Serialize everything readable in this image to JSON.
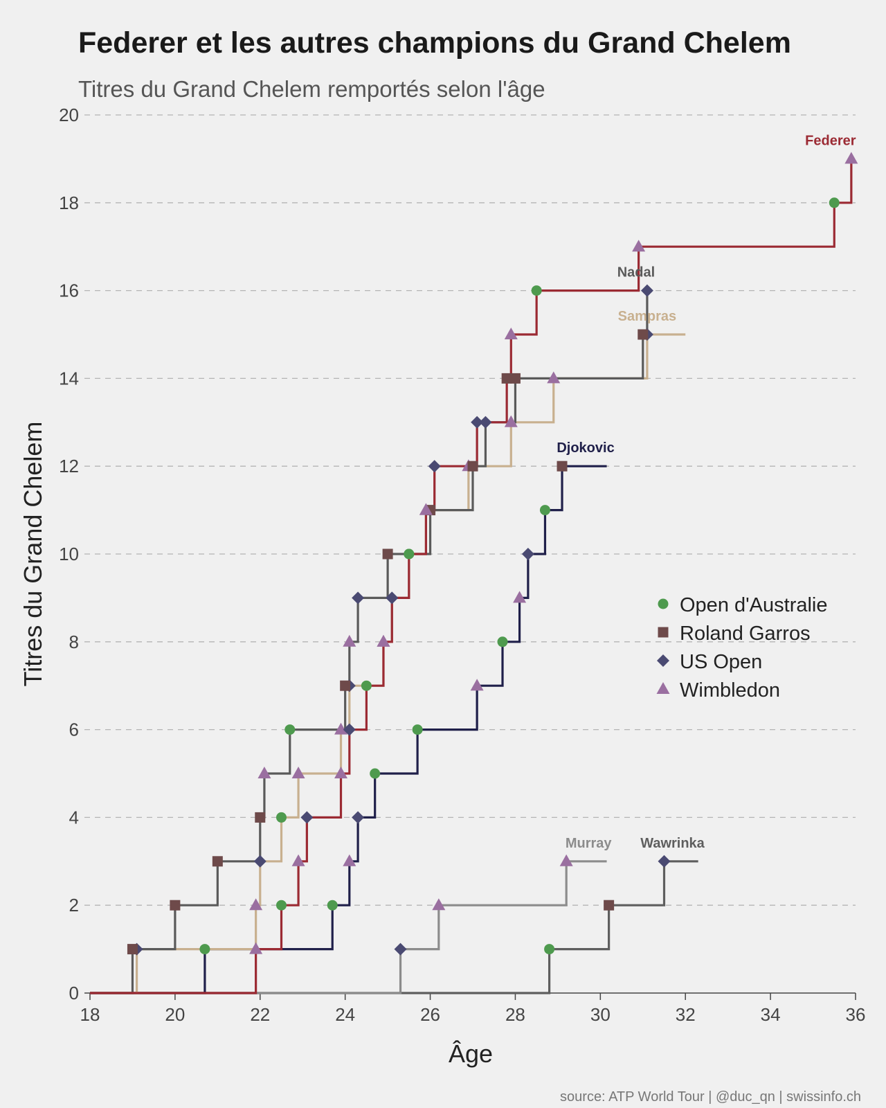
{
  "chart_data": {
    "type": "line",
    "title": "Federer et les autres champions du Grand Chelem",
    "subtitle": "Titres du Grand Chelem remportés selon l'âge",
    "xlabel": "Âge",
    "ylabel": "Titres du Grand Chelem",
    "source": "source: ATP World Tour | @duc_qn | swissinfo.ch",
    "xlim": [
      18,
      36
    ],
    "ylim": [
      0,
      20
    ],
    "x_ticks": [
      18,
      20,
      22,
      24,
      26,
      28,
      30,
      32,
      34,
      36
    ],
    "y_ticks": [
      0,
      2,
      4,
      6,
      8,
      10,
      12,
      14,
      16,
      18,
      20
    ],
    "grid": "horizontal dashed",
    "legend_position": "right",
    "legend": [
      {
        "key": "AO",
        "label": "Open d'Australie",
        "shape": "circle",
        "color": "#4e9a4e"
      },
      {
        "key": "RG",
        "label": "Roland Garros",
        "shape": "square",
        "color": "#6e4a4a"
      },
      {
        "key": "US",
        "label": "US Open",
        "shape": "diamond",
        "color": "#4a4a72"
      },
      {
        "key": "W",
        "label": "Wimbledon",
        "shape": "triangle",
        "color": "#9a6fa0"
      }
    ],
    "series": [
      {
        "name": "Federer",
        "color": "#9b2a33",
        "end_age": 35.95,
        "titles": [
          [
            21.9,
            "W"
          ],
          [
            22.5,
            "AO"
          ],
          [
            22.9,
            "W"
          ],
          [
            23.1,
            "US"
          ],
          [
            23.9,
            "W"
          ],
          [
            24.1,
            "US"
          ],
          [
            24.5,
            "AO"
          ],
          [
            24.9,
            "W"
          ],
          [
            25.1,
            "US"
          ],
          [
            25.5,
            "AO"
          ],
          [
            25.9,
            "W"
          ],
          [
            26.1,
            "US"
          ],
          [
            27.1,
            "US"
          ],
          [
            27.8,
            "RG"
          ],
          [
            27.9,
            "W"
          ],
          [
            28.5,
            "AO"
          ],
          [
            30.9,
            "W"
          ],
          [
            35.5,
            "AO"
          ],
          [
            35.9,
            "W"
          ]
        ]
      },
      {
        "name": "Nadal",
        "color": "#5a5a5a",
        "end_age": 31.05,
        "titles": [
          [
            19.0,
            "RG"
          ],
          [
            20.0,
            "RG"
          ],
          [
            21.0,
            "RG"
          ],
          [
            22.0,
            "RG"
          ],
          [
            22.1,
            "W"
          ],
          [
            22.7,
            "AO"
          ],
          [
            24.0,
            "RG"
          ],
          [
            24.1,
            "W"
          ],
          [
            24.3,
            "US"
          ],
          [
            25.0,
            "RG"
          ],
          [
            26.0,
            "RG"
          ],
          [
            27.0,
            "RG"
          ],
          [
            27.3,
            "US"
          ],
          [
            28.0,
            "RG"
          ],
          [
            31.0,
            "RG"
          ],
          [
            31.1,
            "US"
          ]
        ]
      },
      {
        "name": "Sampras",
        "color": "#c8b08f",
        "end_age": 32.0,
        "titles": [
          [
            19.1,
            "US"
          ],
          [
            21.9,
            "W"
          ],
          [
            22.0,
            "US"
          ],
          [
            22.5,
            "AO"
          ],
          [
            22.9,
            "W"
          ],
          [
            23.9,
            "W"
          ],
          [
            24.1,
            "US"
          ],
          [
            24.9,
            "W"
          ],
          [
            25.1,
            "US"
          ],
          [
            25.5,
            "AO"
          ],
          [
            25.9,
            "W"
          ],
          [
            26.9,
            "W"
          ],
          [
            27.9,
            "W"
          ],
          [
            28.9,
            "W"
          ],
          [
            31.1,
            "US"
          ]
        ]
      },
      {
        "name": "Djokovic",
        "color": "#20204a",
        "end_age": 30.15,
        "titles": [
          [
            20.7,
            "AO"
          ],
          [
            23.7,
            "AO"
          ],
          [
            24.1,
            "W"
          ],
          [
            24.3,
            "US"
          ],
          [
            24.7,
            "AO"
          ],
          [
            25.7,
            "AO"
          ],
          [
            27.1,
            "W"
          ],
          [
            27.7,
            "AO"
          ],
          [
            28.1,
            "W"
          ],
          [
            28.3,
            "US"
          ],
          [
            28.7,
            "AO"
          ],
          [
            29.1,
            "RG"
          ]
        ]
      },
      {
        "name": "Murray",
        "color": "#8c8c8c",
        "end_age": 30.15,
        "titles": [
          [
            25.3,
            "US"
          ],
          [
            26.2,
            "W"
          ],
          [
            29.2,
            "W"
          ]
        ]
      },
      {
        "name": "Wawrinka",
        "color": "#5e5e5e",
        "end_age": 32.3,
        "titles": [
          [
            28.8,
            "AO"
          ],
          [
            30.2,
            "RG"
          ],
          [
            31.5,
            "US"
          ]
        ]
      }
    ]
  }
}
